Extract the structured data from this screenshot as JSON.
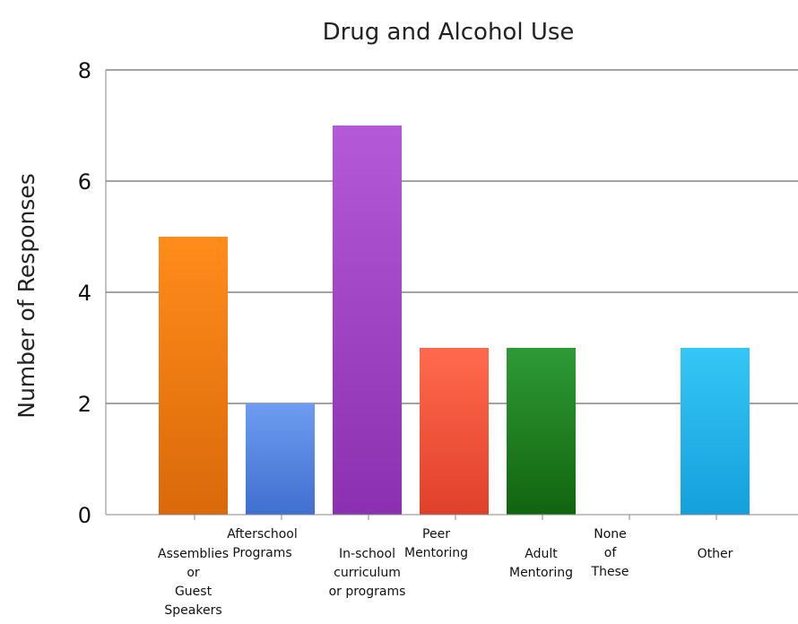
{
  "chart_data": {
    "type": "bar",
    "title_lines": [
      "Drug and Alcohol Use"
    ],
    "ylabel": "Number of Responses",
    "xlabel": "",
    "ylim": [
      0,
      8
    ],
    "yticks": [
      0,
      2,
      4,
      6,
      8
    ],
    "grid": true,
    "categories": [
      "Assemblies or Guest Speakers",
      "Afterschool Programs",
      "In-school curriculum or programs",
      "Peer Mentoring",
      "Adult Mentoring",
      "None of These",
      "Other"
    ],
    "category_label_lines": [
      [
        "Assemblies",
        "or",
        "Guest",
        "Speakers"
      ],
      [
        "Afterschool",
        "Programs"
      ],
      [
        "In-school",
        "curriculum",
        "or programs"
      ],
      [
        "Peer",
        "Mentoring"
      ],
      [
        "Adult",
        "Mentoring"
      ],
      [
        "None",
        "of",
        "These"
      ],
      [
        "Other"
      ]
    ],
    "values": [
      5,
      2,
      7,
      3,
      3,
      0,
      3
    ],
    "bar_colors": [
      [
        "#ff8c1a",
        "#d9690a"
      ],
      [
        "#6e9cf0",
        "#3f6fd0"
      ],
      [
        "#b45ad8",
        "#8a30b0"
      ],
      [
        "#ff6a4d",
        "#e0402a"
      ],
      [
        "#2e9a35",
        "#12640f"
      ],
      [
        "#999999",
        "#777777"
      ],
      [
        "#35c6f5",
        "#14a0dc"
      ]
    ]
  }
}
